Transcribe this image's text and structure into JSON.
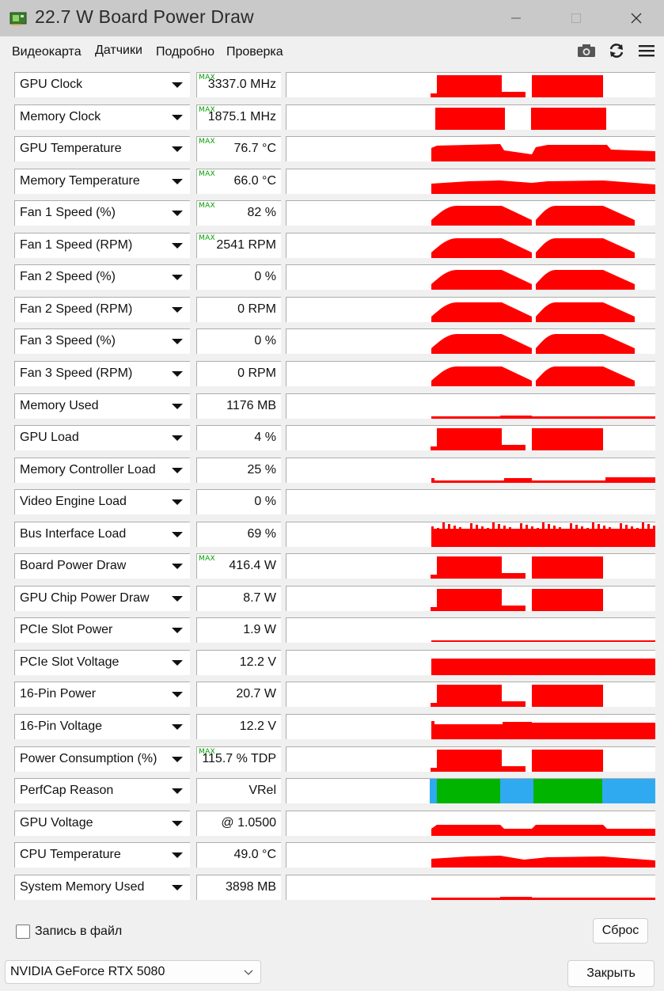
{
  "window": {
    "title": "22.7 W Board Power Draw",
    "colors": {
      "titlebar": "#c9c9c9",
      "graph_line": "#ff0000",
      "max_tag": "#00a000",
      "perfcap_green": "#00b400",
      "perfcap_blue": "#2faaf0"
    }
  },
  "tabs": [
    {
      "label": "Видеокарта"
    },
    {
      "label": "Датчики",
      "active": true
    },
    {
      "label": "Подробно"
    },
    {
      "label": "Проверка"
    }
  ],
  "toolbar": {
    "icons": [
      "camera-icon",
      "refresh-icon",
      "menu-icon"
    ]
  },
  "max_tag": "MAX",
  "sensors": [
    {
      "name": "GPU Clock",
      "value": "3337.0 MHz",
      "max": true,
      "shape": "blocks"
    },
    {
      "name": "Memory Clock",
      "value": "1875.1 MHz",
      "max": true,
      "shape": "flatblocks"
    },
    {
      "name": "GPU Temperature",
      "value": "76.7 °C",
      "max": true,
      "shape": "temp"
    },
    {
      "name": "Memory Temperature",
      "value": "66.0 °C",
      "max": true,
      "shape": "lowtemp"
    },
    {
      "name": "Fan 1 Speed (%)",
      "value": "82 %",
      "max": true,
      "shape": "fan"
    },
    {
      "name": "Fan 1 Speed (RPM)",
      "value": "2541 RPM",
      "max": true,
      "shape": "fan"
    },
    {
      "name": "Fan 2 Speed (%)",
      "value": "0 %",
      "max": false,
      "shape": "fan"
    },
    {
      "name": "Fan 2 Speed (RPM)",
      "value": "0 RPM",
      "max": false,
      "shape": "fan"
    },
    {
      "name": "Fan 3 Speed (%)",
      "value": "0 %",
      "max": false,
      "shape": "fan"
    },
    {
      "name": "Fan 3 Speed (RPM)",
      "value": "0 RPM",
      "max": false,
      "shape": "fan"
    },
    {
      "name": "Memory Used",
      "value": "1176 MB",
      "max": false,
      "shape": "thin"
    },
    {
      "name": "GPU Load",
      "value": "4 %",
      "max": false,
      "shape": "blocks"
    },
    {
      "name": "Memory Controller Load",
      "value": "25 %",
      "max": false,
      "shape": "noisylow"
    },
    {
      "name": "Video Engine Load",
      "value": "0 %",
      "max": false,
      "shape": "none"
    },
    {
      "name": "Bus Interface Load",
      "value": "69 %",
      "max": false,
      "shape": "noisyhigh"
    },
    {
      "name": "Board Power Draw",
      "value": "416.4 W",
      "max": true,
      "shape": "blocks"
    },
    {
      "name": "GPU Chip Power Draw",
      "value": "8.7 W",
      "max": false,
      "shape": "blocks"
    },
    {
      "name": "PCIe Slot Power",
      "value": "1.9 W",
      "max": false,
      "shape": "hairline"
    },
    {
      "name": "PCIe Slot Voltage",
      "value": "12.2 V",
      "max": false,
      "shape": "voltage"
    },
    {
      "name": "16-Pin Power",
      "value": "20.7 W",
      "max": false,
      "shape": "blocks"
    },
    {
      "name": "16-Pin Voltage",
      "value": "12.2 V",
      "max": false,
      "shape": "voltage2"
    },
    {
      "name": "Power Consumption (%)",
      "value": "115.7 % TDP",
      "max": true,
      "shape": "blocks"
    },
    {
      "name": "PerfCap Reason",
      "value": "VRel",
      "max": false,
      "shape": "perfcap"
    },
    {
      "name": "GPU Voltage",
      "value": "@ 1.0500",
      "max": false,
      "shape": "gpuvolt"
    },
    {
      "name": "CPU Temperature",
      "value": "49.0 °C",
      "max": false,
      "shape": "cputemp"
    },
    {
      "name": "System Memory Used",
      "value": "3898 MB",
      "max": false,
      "shape": "thin"
    }
  ],
  "footer": {
    "log_label": "Запись в файл",
    "log_checked": false,
    "reset_label": "Сброс",
    "gpu_select": "NVIDIA GeForce RTX 5080",
    "close_label": "Закрыть"
  }
}
